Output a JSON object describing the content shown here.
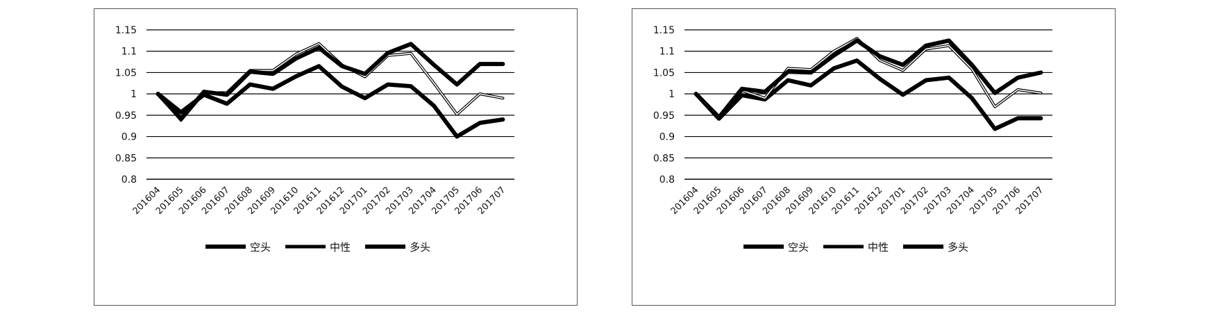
{
  "chart_data": [
    {
      "type": "line",
      "title": "",
      "xlabel": "",
      "ylabel": "",
      "ylim": [
        0.8,
        1.15
      ],
      "yticks": [
        "0.8",
        "0.85",
        "0.9",
        "0.95",
        "1",
        "1.05",
        "1.1",
        "1.15"
      ],
      "categories": [
        "201604",
        "201605",
        "201606",
        "201607",
        "201608",
        "201609",
        "201610",
        "201611",
        "201612",
        "201701",
        "201702",
        "201703",
        "201704",
        "201705",
        "201706",
        "201707"
      ],
      "grid": true,
      "legend": "bottom",
      "series": [
        {
          "name": "空头",
          "values": [
            1.0,
            0.957,
            0.998,
            0.977,
            1.022,
            1.012,
            1.041,
            1.065,
            1.017,
            0.99,
            1.022,
            1.018,
            0.972,
            0.9,
            0.932,
            0.94
          ]
        },
        {
          "name": "中性",
          "values": [
            1.0,
            0.938,
            1.002,
            1.003,
            1.055,
            1.055,
            1.093,
            1.118,
            1.068,
            1.04,
            1.09,
            1.095,
            1.025,
            0.952,
            1.0,
            0.99
          ]
        },
        {
          "name": "多头",
          "values": [
            1.0,
            0.942,
            1.005,
            0.998,
            1.052,
            1.047,
            1.083,
            1.108,
            1.065,
            1.047,
            1.096,
            1.117,
            1.068,
            1.022,
            1.07,
            1.07
          ]
        }
      ]
    },
    {
      "type": "line",
      "title": "",
      "xlabel": "",
      "ylabel": "",
      "ylim": [
        0.8,
        1.15
      ],
      "yticks": [
        "0.8",
        "0.85",
        "0.9",
        "0.95",
        "1",
        "1.05",
        "1.1",
        "1.15"
      ],
      "categories": [
        "201604",
        "201605",
        "201606",
        "201607",
        "201608",
        "201609",
        "201610",
        "201611",
        "201612",
        "201701",
        "201702",
        "201703",
        "201704",
        "201705",
        "201706",
        "201707"
      ],
      "grid": true,
      "legend": "bottom",
      "series": [
        {
          "name": "空头",
          "values": [
            1.0,
            0.942,
            0.997,
            0.987,
            1.032,
            1.02,
            1.06,
            1.078,
            1.035,
            0.998,
            1.032,
            1.038,
            0.99,
            0.918,
            0.943,
            0.943
          ]
        },
        {
          "name": "中性",
          "values": [
            1.0,
            0.944,
            1.008,
            0.99,
            1.06,
            1.057,
            1.1,
            1.13,
            1.078,
            1.055,
            1.105,
            1.113,
            1.058,
            0.97,
            1.01,
            1.002
          ]
        },
        {
          "name": "多头",
          "values": [
            1.0,
            0.945,
            1.012,
            1.005,
            1.052,
            1.05,
            1.09,
            1.125,
            1.088,
            1.068,
            1.113,
            1.125,
            1.068,
            1.002,
            1.038,
            1.05
          ]
        }
      ]
    }
  ],
  "styles": {
    "line_color": "#000000",
    "grid_color": "#000000",
    "background": "#ffffff"
  }
}
